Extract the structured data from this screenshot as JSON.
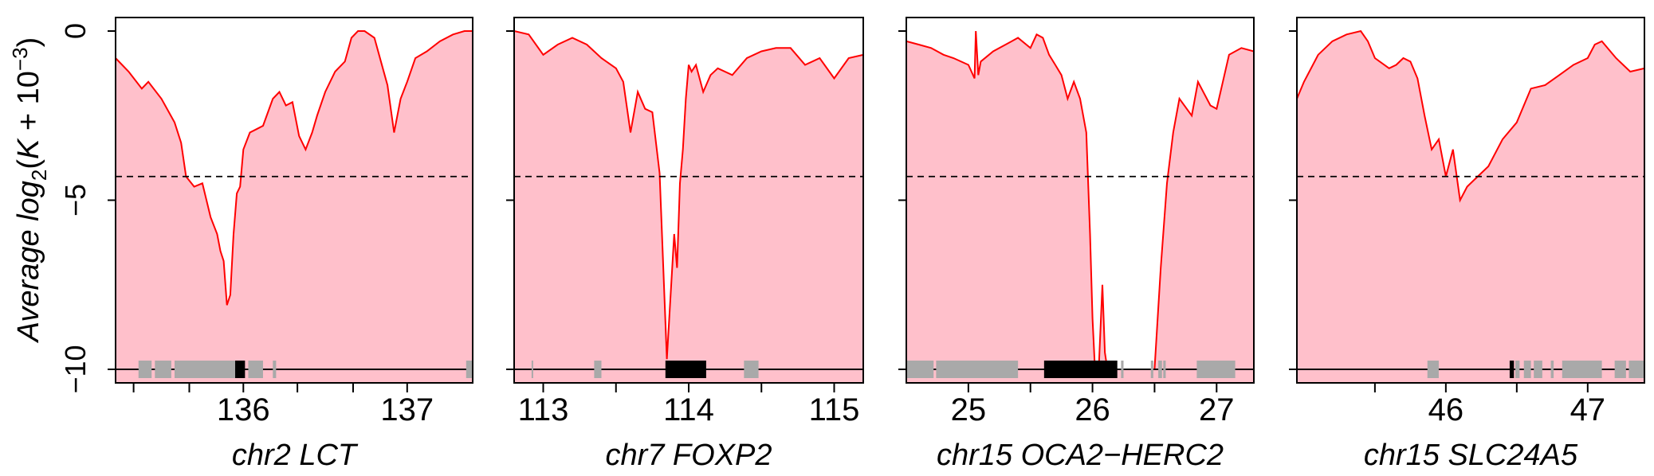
{
  "ylabel": {
    "prefix": "Average log",
    "sub": "2",
    "open": "(",
    "var": "K",
    "plus": " + 10",
    "sup": "−3",
    "close": ")"
  },
  "yticks": [
    {
      "value": 0,
      "label": "0"
    },
    {
      "value": -5,
      "label": "−5"
    },
    {
      "value": -10,
      "label": "−10"
    }
  ],
  "colors": {
    "fill": "#ffc0cb",
    "line": "#ff0000",
    "gene": "#a9a9a9",
    "target_gene": "#000000",
    "threshold": "#000000"
  },
  "threshold": -4.3,
  "chart_data": [
    {
      "type": "area",
      "xlabel": "chr2 LCT",
      "xlim": [
        135.22,
        137.4
      ],
      "ylim": [
        -10.4,
        0.4
      ],
      "xticks": [
        {
          "value": 136,
          "label": "136"
        },
        {
          "value": 137,
          "label": "137"
        }
      ],
      "minor_ticks": [
        135.33,
        135.67,
        136.33,
        136.67
      ],
      "x": [
        135.22,
        135.3,
        135.38,
        135.42,
        135.5,
        135.58,
        135.62,
        135.65,
        135.7,
        135.75,
        135.8,
        135.84,
        135.86,
        135.88,
        135.9,
        135.92,
        135.94,
        135.96,
        135.98,
        136.0,
        136.04,
        136.08,
        136.12,
        136.18,
        136.22,
        136.26,
        136.3,
        136.34,
        136.38,
        136.42,
        136.45,
        136.5,
        136.56,
        136.62,
        136.66,
        136.7,
        136.74,
        136.8,
        136.84,
        136.88,
        136.92,
        136.96,
        137.0,
        137.05,
        137.12,
        137.2,
        137.28,
        137.35,
        137.4
      ],
      "y": [
        -0.8,
        -1.2,
        -1.7,
        -1.5,
        -2.0,
        -2.7,
        -3.3,
        -4.3,
        -4.6,
        -4.5,
        -5.5,
        -6.0,
        -6.5,
        -6.8,
        -8.1,
        -7.8,
        -6.0,
        -4.8,
        -4.6,
        -3.5,
        -3.0,
        -2.9,
        -2.8,
        -2.0,
        -1.8,
        -2.2,
        -2.1,
        -3.1,
        -3.5,
        -3.0,
        -2.5,
        -1.8,
        -1.2,
        -0.9,
        -0.2,
        0.0,
        0.0,
        -0.2,
        -0.9,
        -1.6,
        -3.0,
        -2.0,
        -1.5,
        -0.8,
        -0.6,
        -0.3,
        -0.1,
        0.0,
        0.0
      ],
      "genes": [
        {
          "start": 135.36,
          "end": 135.44,
          "role": "other"
        },
        {
          "start": 135.46,
          "end": 135.56,
          "role": "other"
        },
        {
          "start": 135.58,
          "end": 135.95,
          "role": "other"
        },
        {
          "start": 135.95,
          "end": 136.01,
          "role": "target"
        },
        {
          "start": 136.03,
          "end": 136.12,
          "role": "other"
        },
        {
          "start": 136.18,
          "end": 136.2,
          "role": "other"
        },
        {
          "start": 137.36,
          "end": 137.4,
          "role": "other"
        }
      ]
    },
    {
      "type": "area",
      "xlabel": "chr7 FOXP2",
      "xlim": [
        112.8,
        115.2
      ],
      "ylim": [
        -10.4,
        0.4
      ],
      "xticks": [
        {
          "value": 113,
          "label": "113"
        },
        {
          "value": 114,
          "label": "114"
        },
        {
          "value": 115,
          "label": "115"
        }
      ],
      "minor_ticks": [
        113.5,
        114.5
      ],
      "x": [
        112.8,
        112.9,
        113.0,
        113.1,
        113.2,
        113.3,
        113.4,
        113.5,
        113.55,
        113.6,
        113.65,
        113.7,
        113.75,
        113.8,
        113.85,
        113.9,
        113.92,
        113.94,
        113.96,
        113.98,
        114.0,
        114.02,
        114.05,
        114.1,
        114.15,
        114.2,
        114.3,
        114.4,
        114.5,
        114.6,
        114.7,
        114.8,
        114.9,
        115.0,
        115.1,
        115.2
      ],
      "y": [
        0.0,
        -0.1,
        -0.7,
        -0.4,
        -0.2,
        -0.4,
        -0.8,
        -1.1,
        -1.5,
        -3.0,
        -1.8,
        -2.3,
        -2.4,
        -4.2,
        -9.7,
        -6.0,
        -7.0,
        -4.5,
        -3.5,
        -2.0,
        -1.0,
        -1.2,
        -1.0,
        -1.8,
        -1.3,
        -1.1,
        -1.3,
        -0.8,
        -0.6,
        -0.5,
        -0.5,
        -1.0,
        -0.8,
        -1.4,
        -0.8,
        -0.7
      ],
      "genes": [
        {
          "start": 112.92,
          "end": 112.93,
          "role": "other"
        },
        {
          "start": 113.35,
          "end": 113.4,
          "role": "other"
        },
        {
          "start": 113.84,
          "end": 114.12,
          "role": "target"
        },
        {
          "start": 114.38,
          "end": 114.48,
          "role": "other"
        }
      ]
    },
    {
      "type": "area",
      "xlabel": "chr15 OCA2−HERC2",
      "xlim": [
        24.5,
        27.3
      ],
      "ylim": [
        -10.4,
        0.4
      ],
      "xticks": [
        {
          "value": 25,
          "label": "25"
        },
        {
          "value": 26,
          "label": "26"
        },
        {
          "value": 27,
          "label": "27"
        }
      ],
      "minor_ticks": [
        25.5,
        26.5
      ],
      "x": [
        24.5,
        24.6,
        24.7,
        24.8,
        24.88,
        25.0,
        25.05,
        25.06,
        25.08,
        25.1,
        25.2,
        25.3,
        25.4,
        25.5,
        25.55,
        25.6,
        25.65,
        25.7,
        25.75,
        25.8,
        25.85,
        25.9,
        25.95,
        25.98,
        26.0,
        26.02,
        26.05,
        26.08,
        26.1,
        26.12,
        26.15,
        26.3,
        26.5,
        26.55,
        26.6,
        26.65,
        26.7,
        26.8,
        26.85,
        26.95,
        27.0,
        27.05,
        27.1,
        27.2,
        27.3
      ],
      "y": [
        -0.3,
        -0.4,
        -0.5,
        -0.7,
        -0.8,
        -1.0,
        -1.4,
        0.0,
        -1.3,
        -0.9,
        -0.6,
        -0.4,
        -0.2,
        -0.5,
        -0.1,
        -0.2,
        -0.7,
        -1.0,
        -1.3,
        -2.0,
        -1.5,
        -2.0,
        -3.0,
        -6.0,
        -8.5,
        -10.0,
        -10.0,
        -7.5,
        -9.5,
        -10.0,
        -10.0,
        -10.0,
        -10.0,
        -7.0,
        -4.5,
        -3.0,
        -2.0,
        -2.5,
        -1.5,
        -2.2,
        -2.3,
        -1.5,
        -0.7,
        -0.5,
        -0.6
      ],
      "genes": [
        {
          "start": 24.5,
          "end": 24.72,
          "role": "other"
        },
        {
          "start": 24.74,
          "end": 25.4,
          "role": "other"
        },
        {
          "start": 25.61,
          "end": 26.2,
          "role": "target"
        },
        {
          "start": 26.23,
          "end": 26.25,
          "role": "other"
        },
        {
          "start": 26.47,
          "end": 26.49,
          "role": "other"
        },
        {
          "start": 26.53,
          "end": 26.56,
          "role": "other"
        },
        {
          "start": 26.57,
          "end": 26.59,
          "role": "other"
        },
        {
          "start": 26.84,
          "end": 27.15,
          "role": "other"
        }
      ]
    },
    {
      "type": "area",
      "xlabel": "chr15 SLC24A5",
      "xlim": [
        44.95,
        47.4
      ],
      "ylim": [
        -10.4,
        0.4
      ],
      "xticks": [
        {
          "value": 46,
          "label": "46"
        },
        {
          "value": 47,
          "label": "47"
        }
      ],
      "minor_ticks": [
        45.5,
        46.5
      ],
      "x": [
        44.95,
        45.0,
        45.1,
        45.2,
        45.3,
        45.4,
        45.45,
        45.5,
        45.6,
        45.65,
        45.7,
        45.75,
        45.8,
        45.85,
        45.9,
        45.95,
        46.0,
        46.05,
        46.1,
        46.15,
        46.2,
        46.3,
        46.4,
        46.5,
        46.6,
        46.7,
        46.8,
        46.9,
        47.0,
        47.05,
        47.1,
        47.2,
        47.3,
        47.4
      ],
      "y": [
        -2.0,
        -1.5,
        -0.7,
        -0.3,
        -0.1,
        0.0,
        -0.3,
        -0.8,
        -1.1,
        -1.0,
        -0.8,
        -0.9,
        -1.4,
        -2.5,
        -3.5,
        -3.2,
        -4.3,
        -3.5,
        -5.0,
        -4.6,
        -4.4,
        -4.0,
        -3.2,
        -2.7,
        -1.7,
        -1.6,
        -1.3,
        -1.0,
        -0.8,
        -0.4,
        -0.3,
        -0.8,
        -1.2,
        -1.1
      ],
      "genes": [
        {
          "start": 45.87,
          "end": 45.95,
          "role": "other"
        },
        {
          "start": 46.45,
          "end": 46.48,
          "role": "target"
        },
        {
          "start": 46.49,
          "end": 46.52,
          "role": "other"
        },
        {
          "start": 46.55,
          "end": 46.6,
          "role": "other"
        },
        {
          "start": 46.62,
          "end": 46.68,
          "role": "other"
        },
        {
          "start": 46.74,
          "end": 46.76,
          "role": "other"
        },
        {
          "start": 46.82,
          "end": 47.1,
          "role": "other"
        },
        {
          "start": 47.19,
          "end": 47.27,
          "role": "other"
        },
        {
          "start": 47.29,
          "end": 47.4,
          "role": "other"
        }
      ]
    }
  ]
}
